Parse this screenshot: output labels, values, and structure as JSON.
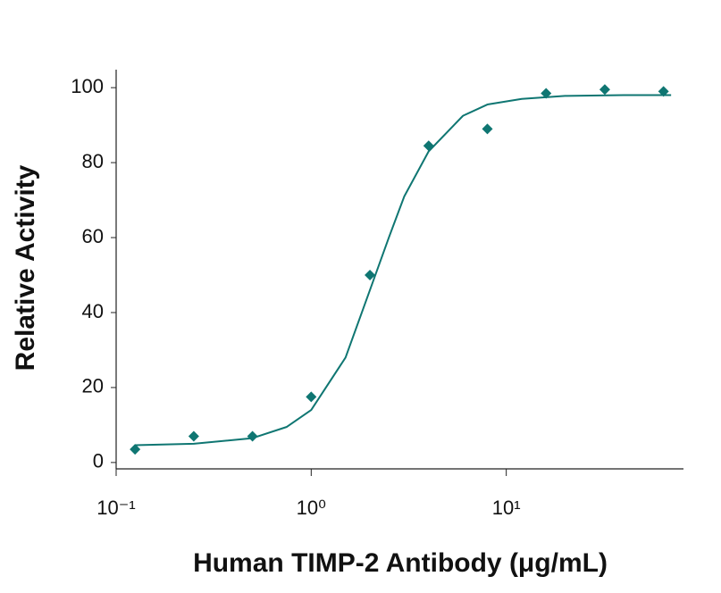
{
  "chart_data": {
    "type": "scatter",
    "x_label": "Human TIMP-2 Antibody (μg/mL)",
    "y_label": "Relative Activity",
    "x_log": true,
    "xlim": [
      0.1,
      81
    ],
    "ylim": [
      -1.7,
      104.8
    ],
    "xticks": [
      {
        "value": 0.1,
        "label": "10⁻¹"
      },
      {
        "value": 1,
        "label": "10⁰"
      },
      {
        "value": 10,
        "label": "10¹"
      }
    ],
    "yticks": [
      0,
      20,
      40,
      60,
      80,
      100
    ],
    "series": [
      {
        "kind": "points",
        "color": "#0f7672",
        "x": [
          0.125,
          0.25,
          0.5,
          1,
          2,
          4,
          8,
          16,
          32,
          64
        ],
        "values": [
          3.5,
          7,
          7,
          17.5,
          50,
          84.5,
          89,
          98.5,
          99.5,
          99
        ]
      },
      {
        "kind": "line",
        "color": "#0f7672",
        "x": [
          0.125,
          0.25,
          0.5,
          0.75,
          1,
          1.5,
          2,
          2.5,
          3,
          4,
          6,
          8,
          12,
          20,
          40,
          70
        ],
        "values": [
          4.6,
          5,
          6.5,
          9.5,
          14,
          28,
          46,
          60,
          71,
          83,
          92.5,
          95.5,
          97,
          97.8,
          98,
          98
        ]
      }
    ]
  }
}
